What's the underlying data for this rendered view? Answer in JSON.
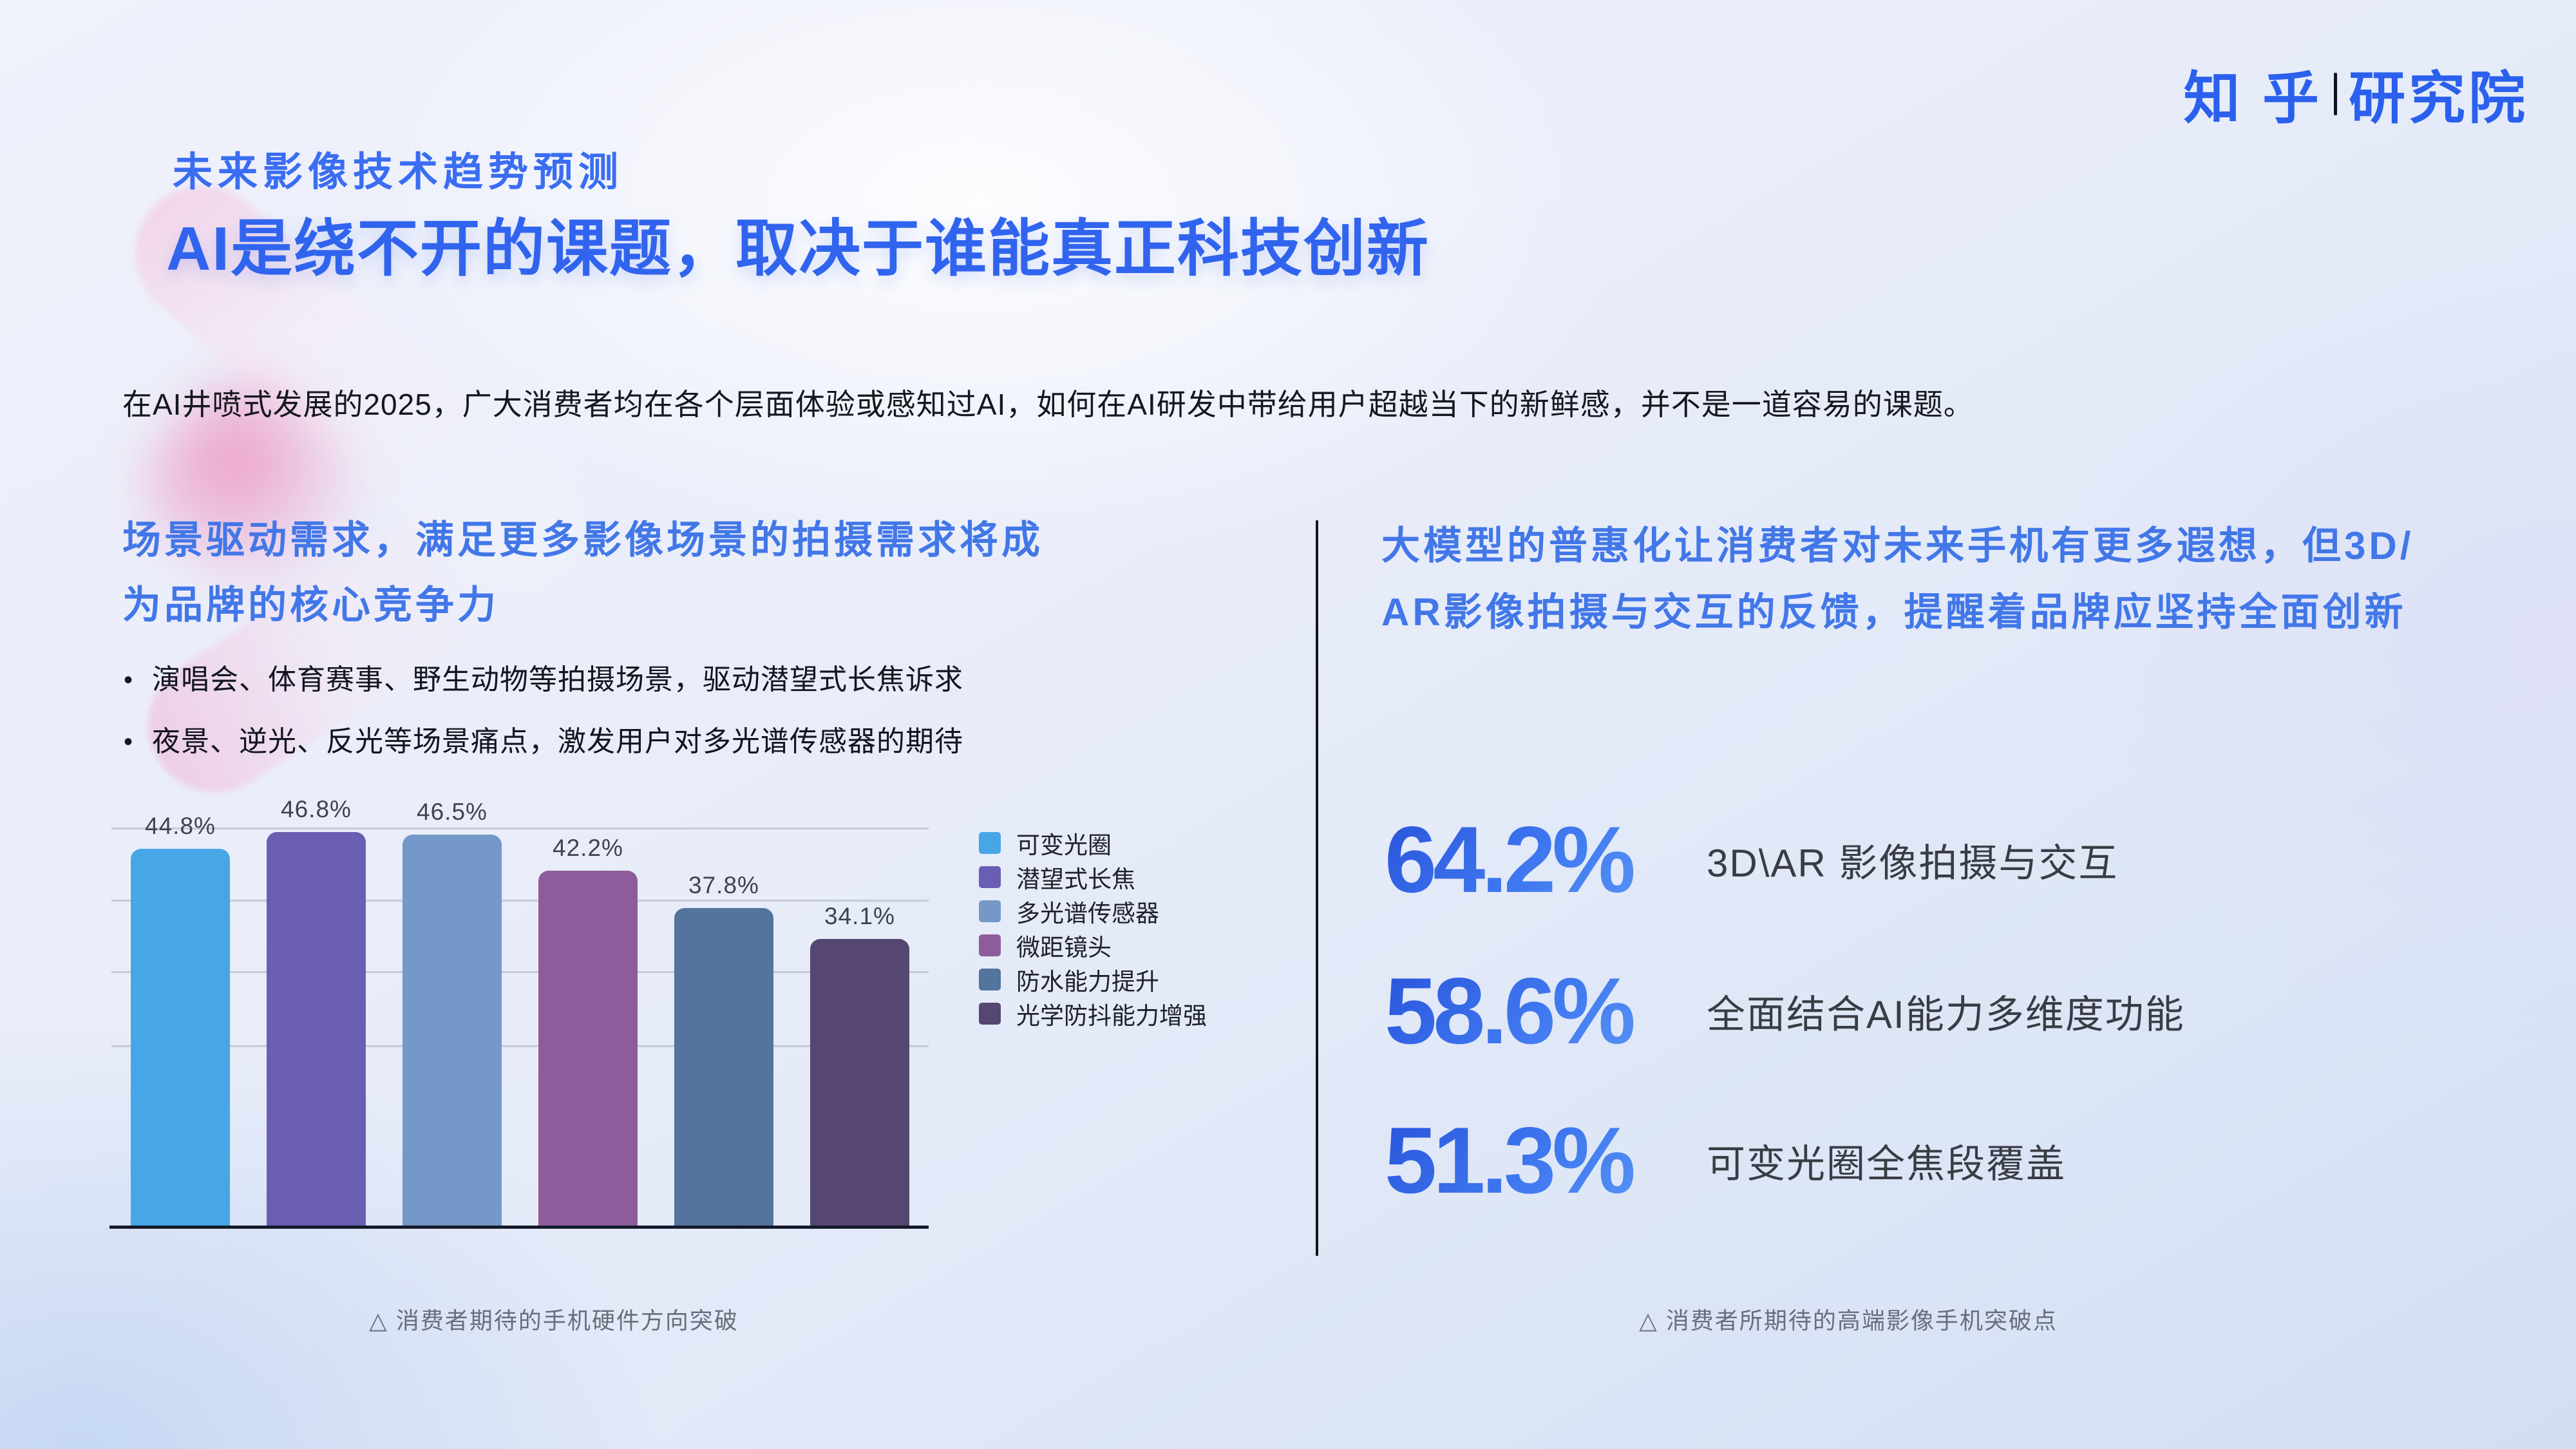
{
  "slide": {
    "logo": {
      "brand": "知 乎",
      "divider": "|",
      "suffix": "研究院"
    },
    "eyebrow": "未来影像技术趋势预测",
    "title": "AI是绕不开的课题，取决于谁能真正科技创新",
    "intro": "在AI井喷式发展的2025，广大消费者均在各个层面体验或感知过AI，如何在AI研发中带给用户超越当下的新鲜感，并不是一道容易的课题。",
    "left": {
      "heading_line1": "场景驱动需求，满足更多影像场景的拍摄需求将成",
      "heading_line2": "为品牌的核心竞争力",
      "bullet_marker": "•",
      "bullets": [
        "演唱会、体育赛事、野生动物等拍摄场景，驱动潜望式长焦诉求",
        "夜景、逆光、反光等场景痛点，激发用户对多光谱传感器的期待"
      ],
      "caption": "△ 消费者期待的手机硬件方向突破"
    },
    "right": {
      "heading_line1": "大模型的普惠化让消费者对未来手机有更多遐想，但3D/",
      "heading_line2": "AR影像拍摄与交互的反馈，提醒着品牌应坚持全面创新",
      "stats": [
        {
          "value": "64.2%",
          "label": "3D\\AR 影像拍摄与交互"
        },
        {
          "value": "58.6%",
          "label": "全面结合AI能力多维度功能"
        },
        {
          "value": "51.3%",
          "label": "可变光圈全焦段覆盖"
        }
      ],
      "caption": "△ 消费者所期待的高端影像手机突破点"
    }
  },
  "chart_data": {
    "type": "bar",
    "categories": [
      "可变光圈",
      "潜望式长焦",
      "多光谱传感器",
      "微距镜头",
      "防水能力提升",
      "光学防抖能力增强"
    ],
    "values": [
      44.8,
      46.8,
      46.5,
      42.2,
      37.8,
      34.1
    ],
    "value_labels": [
      "44.8%",
      "46.8%",
      "46.5%",
      "42.2%",
      "37.8%",
      "34.1%"
    ],
    "colors": [
      "#47a7e6",
      "#6a5eb2",
      "#7498c8",
      "#8e5c9b",
      "#52749d",
      "#564672"
    ],
    "unit": "percent",
    "title": "消费者期待的手机硬件方向突破",
    "xlabel": "",
    "ylabel": "",
    "ylim": [
      0,
      48
    ],
    "grid": true,
    "legend_position": "right"
  },
  "colors": {
    "accent_blue": "#2e63f0",
    "heading_blue": "#4277e8",
    "stat_gradient_start": "#2b57dd",
    "stat_gradient_end": "#5b97f6",
    "caption_gray": "#686e7b",
    "axis_dark": "#151b2b"
  }
}
